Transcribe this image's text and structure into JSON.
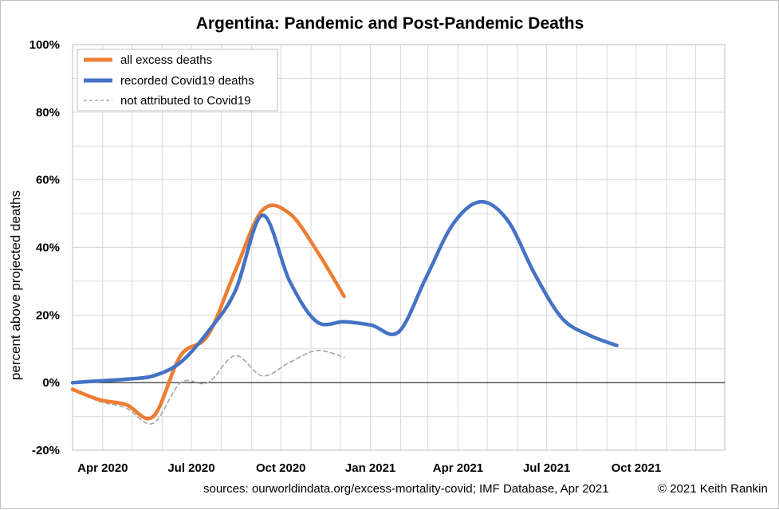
{
  "chart_data": {
    "type": "line",
    "title_country": "Argentina",
    "title_rest": ": Pandemic and Post-Pandemic Deaths",
    "ylabel": "percent above projected deaths",
    "xlabel": "",
    "ylim": [
      -20,
      100
    ],
    "yticks": [
      -20,
      0,
      20,
      40,
      60,
      80,
      100
    ],
    "ytick_labels": [
      "-20%",
      "0%",
      "20%",
      "40%",
      "60%",
      "80%",
      "100%"
    ],
    "xlim": [
      "2020-03-01",
      "2021-12-31"
    ],
    "xticks": [
      "2020-04-01",
      "2020-07-01",
      "2020-10-01",
      "2021-01-01",
      "2021-04-01",
      "2021-07-01",
      "2021-10-01"
    ],
    "xtick_labels": [
      "Apr 2020",
      "Jul 2020",
      "Oct 2020",
      "Jan 2021",
      "Apr 2021",
      "Jul 2021",
      "Oct 2021"
    ],
    "grid": true,
    "legend_position": "top-left",
    "series": [
      {
        "name": "all excess deaths",
        "color": "#ED7D31",
        "style": "solid",
        "x": [
          "2020-03-01",
          "2020-03-28",
          "2020-04-25",
          "2020-05-23",
          "2020-06-20",
          "2020-07-18",
          "2020-08-15",
          "2020-09-12",
          "2020-10-10",
          "2020-11-07",
          "2020-12-05"
        ],
        "y": [
          -2,
          -5,
          -6.5,
          -10,
          8,
          14,
          33,
          51,
          50,
          39,
          25.5
        ]
      },
      {
        "name": "recorded Covid19 deaths",
        "color": "#4472C4",
        "style": "solid",
        "x": [
          "2020-03-01",
          "2020-03-28",
          "2020-04-25",
          "2020-05-23",
          "2020-06-20",
          "2020-07-18",
          "2020-08-15",
          "2020-09-12",
          "2020-10-10",
          "2020-11-07",
          "2020-12-05",
          "2021-01-02",
          "2021-01-30",
          "2021-02-27",
          "2021-03-27",
          "2021-04-24",
          "2021-05-22",
          "2021-06-19",
          "2021-07-17",
          "2021-08-14",
          "2021-09-11"
        ],
        "y": [
          0,
          0.5,
          1,
          2,
          6,
          15,
          27,
          49.5,
          30,
          18,
          18,
          17,
          15,
          31,
          47,
          53.5,
          48,
          32,
          19,
          14,
          11
        ]
      },
      {
        "name": "not attributed to Covid19",
        "color": "#A5A5A5",
        "style": "dashed",
        "x": [
          "2020-03-01",
          "2020-03-28",
          "2020-04-25",
          "2020-05-23",
          "2020-06-20",
          "2020-07-18",
          "2020-08-15",
          "2020-09-12",
          "2020-10-10",
          "2020-11-07",
          "2020-12-05"
        ],
        "y": [
          -2,
          -5.5,
          -7.5,
          -12,
          0,
          0,
          8,
          2,
          6,
          9.5,
          7.5
        ]
      }
    ]
  },
  "footer": {
    "sources": "sources:  ourworldindata.org/excess-mortality-covid;  IMF Database, Apr 2021",
    "copyright": "© 2021 Keith Rankin"
  }
}
